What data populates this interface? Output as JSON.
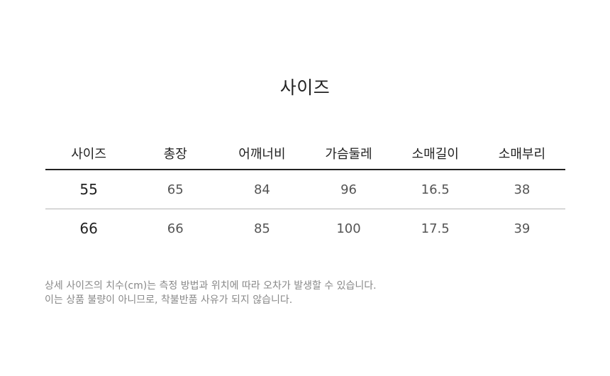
{
  "title": "사이즈",
  "table": {
    "headers": [
      "사이즈",
      "총장",
      "어깨너비",
      "가슴둘레",
      "소매길이",
      "소매부리"
    ],
    "rows": [
      [
        "55",
        "65",
        "84",
        "96",
        "16.5",
        "38"
      ],
      [
        "66",
        "66",
        "85",
        "100",
        "17.5",
        "39"
      ]
    ]
  },
  "notice": {
    "line1": "상세 사이즈의 치수(cm)는 측정 방법과 위치에 따라 오차가 발생할 수 있습니다.",
    "line2": "이는 상품 불량이 아니므로, 착불반품 사유가 되지 않습니다."
  }
}
